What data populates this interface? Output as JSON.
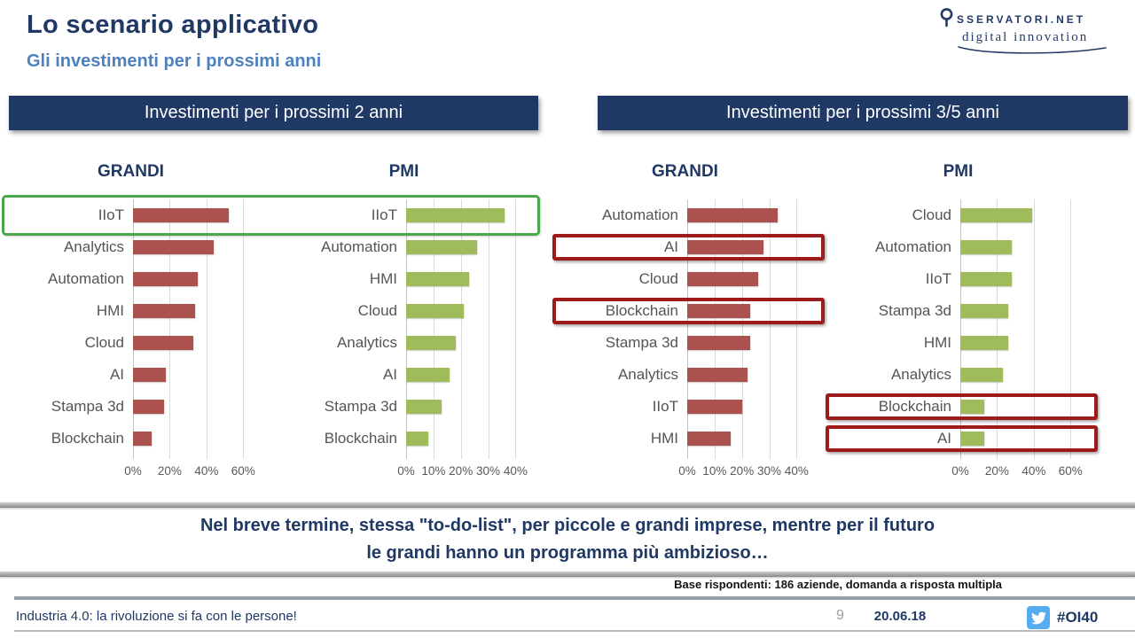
{
  "header": {
    "title": "Lo scenario applicativo",
    "subtitle": "Gli investimenti per i prossimi anni",
    "logo": {
      "line1": "SSERVATORI.NET",
      "line2": "digital innovation"
    }
  },
  "sections": [
    {
      "label": "Investimenti per i prossimi 2 anni"
    },
    {
      "label": "Investimenti per i prossimi 3/5 anni"
    }
  ],
  "chart_data": [
    {
      "type": "bar",
      "title": "GRANDI",
      "section": "Investimenti per i prossimi 2 anni",
      "orientation": "horizontal",
      "unit": "%",
      "categories": [
        "IIoT",
        "Analytics",
        "Automation",
        "HMI",
        "Cloud",
        "AI",
        "Stampa 3d",
        "Blockchain"
      ],
      "values": [
        52,
        44,
        35,
        34,
        33,
        18,
        17,
        10
      ],
      "bar_color": "#ac524e",
      "tick_labels": [
        "0%",
        "20%",
        "40%",
        "60%"
      ],
      "tick_values": [
        0,
        20,
        40,
        60
      ],
      "axis_max": 70,
      "grid": true
    },
    {
      "type": "bar",
      "title": "PMI",
      "section": "Investimenti per i prossimi 2 anni",
      "orientation": "horizontal",
      "unit": "%",
      "categories": [
        "IIoT",
        "Automation",
        "HMI",
        "Cloud",
        "Analytics",
        "AI",
        "Stampa 3d",
        "Blockchain"
      ],
      "values": [
        36,
        26,
        23,
        21,
        18,
        16,
        13,
        8
      ],
      "bar_color": "#a0bb5c",
      "tick_labels": [
        "0%",
        "10%",
        "20%",
        "30%",
        "40%"
      ],
      "tick_values": [
        0,
        10,
        20,
        30,
        40
      ],
      "axis_max": 47,
      "grid": true
    },
    {
      "type": "bar",
      "title": "GRANDI",
      "section": "Investimenti per i prossimi 3/5 anni",
      "orientation": "horizontal",
      "unit": "%",
      "categories": [
        "Automation",
        "AI",
        "Cloud",
        "Blockchain",
        "Stampa 3d",
        "Analytics",
        "IIoT",
        "HMI"
      ],
      "values": [
        33,
        28,
        26,
        23,
        23,
        22,
        20,
        16
      ],
      "bar_color": "#ac524e",
      "tick_labels": [
        "0%",
        "10%",
        "20%",
        "30%",
        "40%"
      ],
      "tick_values": [
        0,
        10,
        20,
        30,
        40
      ],
      "axis_max": 47,
      "grid": true
    },
    {
      "type": "bar",
      "title": "PMI",
      "section": "Investimenti per i prossimi 3/5 anni",
      "orientation": "horizontal",
      "unit": "%",
      "categories": [
        "Cloud",
        "Automation",
        "IIoT",
        "Stampa 3d",
        "HMI",
        "Analytics",
        "Blockchain",
        "AI"
      ],
      "values": [
        39,
        28,
        28,
        26,
        26,
        23,
        13,
        13
      ],
      "bar_color": "#a0bb5c",
      "tick_labels": [
        "0%",
        "20%",
        "40%",
        "60%"
      ],
      "tick_values": [
        0,
        20,
        40,
        60
      ],
      "axis_max": 70,
      "grid": true
    }
  ],
  "highlights": [
    {
      "style": "green",
      "charts": [
        0,
        1
      ],
      "row": 0,
      "category": "IIoT"
    },
    {
      "style": "red",
      "charts": [
        2
      ],
      "row": 1,
      "category": "AI"
    },
    {
      "style": "red",
      "charts": [
        2
      ],
      "row": 3,
      "category": "Blockchain"
    },
    {
      "style": "red",
      "charts": [
        3
      ],
      "row": 6,
      "category": "Blockchain"
    },
    {
      "style": "red",
      "charts": [
        3
      ],
      "row": 7,
      "category": "AI"
    }
  ],
  "message": {
    "line1": "Nel breve termine, stessa \"to-do-list\", per piccole e grandi imprese, mentre per il futuro",
    "line2": "le grandi hanno un programma più ambizioso…"
  },
  "footnote": "Base rispondenti: 186 aziende, domanda a risposta multipla",
  "footer": {
    "left": "Industria 4.0: la rivoluzione si fa con le persone!",
    "page": "9",
    "date": "20.06.18",
    "hashtag": "#OI40"
  },
  "colors": {
    "navy": "#1f3864",
    "subtitle_blue": "#4f81bd",
    "bar_red": "#ac524e",
    "bar_green": "#a0bb5c",
    "highlight_green": "#4ca64c",
    "highlight_red": "#9e1b1b",
    "twitter_blue": "#55acee"
  }
}
